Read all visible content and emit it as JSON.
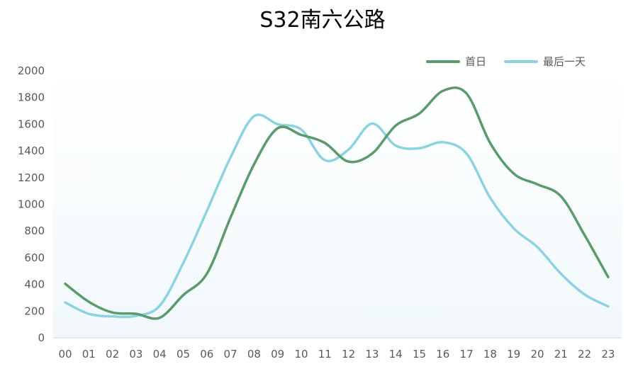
{
  "chart_data": {
    "type": "line",
    "title": "S32南六公路",
    "xlabel": "",
    "ylabel": "",
    "categories": [
      "00",
      "01",
      "02",
      "03",
      "04",
      "05",
      "06",
      "07",
      "08",
      "09",
      "10",
      "11",
      "12",
      "13",
      "14",
      "15",
      "16",
      "17",
      "18",
      "19",
      "20",
      "21",
      "22",
      "23"
    ],
    "ylim": [
      0,
      2000
    ],
    "yticks": [
      0,
      200,
      400,
      600,
      800,
      1000,
      1200,
      1400,
      1600,
      1800,
      2000
    ],
    "grid": false,
    "legend_position": "top-right",
    "series": [
      {
        "name": "首日",
        "color": "#5a9b6e",
        "values": [
          405,
          270,
          190,
          180,
          150,
          320,
          480,
          900,
          1300,
          1570,
          1520,
          1460,
          1320,
          1380,
          1590,
          1680,
          1850,
          1830,
          1460,
          1230,
          1150,
          1060,
          770,
          455
        ]
      },
      {
        "name": "最后一天",
        "color": "#8dd3df",
        "values": [
          265,
          180,
          160,
          165,
          240,
          560,
          950,
          1350,
          1660,
          1600,
          1560,
          1330,
          1410,
          1605,
          1440,
          1420,
          1465,
          1380,
          1050,
          820,
          680,
          480,
          325,
          235
        ]
      }
    ]
  }
}
